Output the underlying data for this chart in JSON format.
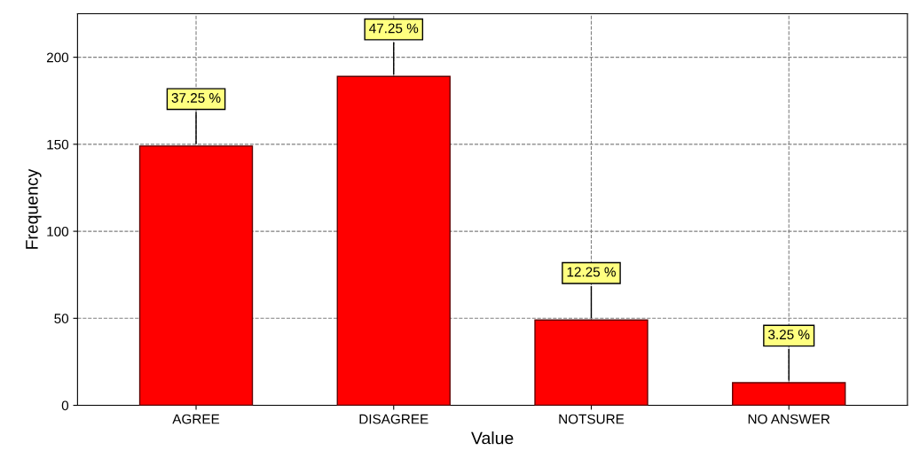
{
  "chart_data": {
    "type": "bar",
    "xlabel": "Value",
    "ylabel": "Frequency",
    "categories": [
      "AGREE",
      "DISAGREE",
      "NOTSURE",
      "NO ANSWER"
    ],
    "values": [
      149,
      189,
      49,
      13
    ],
    "annotations": [
      {
        "text": "37.25 %",
        "x": "AGREE",
        "y": 149
      },
      {
        "text": "47.25 %",
        "x": "DISAGREE",
        "y": 189
      },
      {
        "text": "12.25 %",
        "x": "NOTSURE",
        "y": 49
      },
      {
        "text": "3.25 %",
        "x": "NO ANSWER",
        "y": 13
      }
    ],
    "color": "#ff0000",
    "ylim": [
      0,
      225
    ],
    "yticks": [
      0,
      50,
      100,
      150,
      200
    ],
    "grid": true
  }
}
